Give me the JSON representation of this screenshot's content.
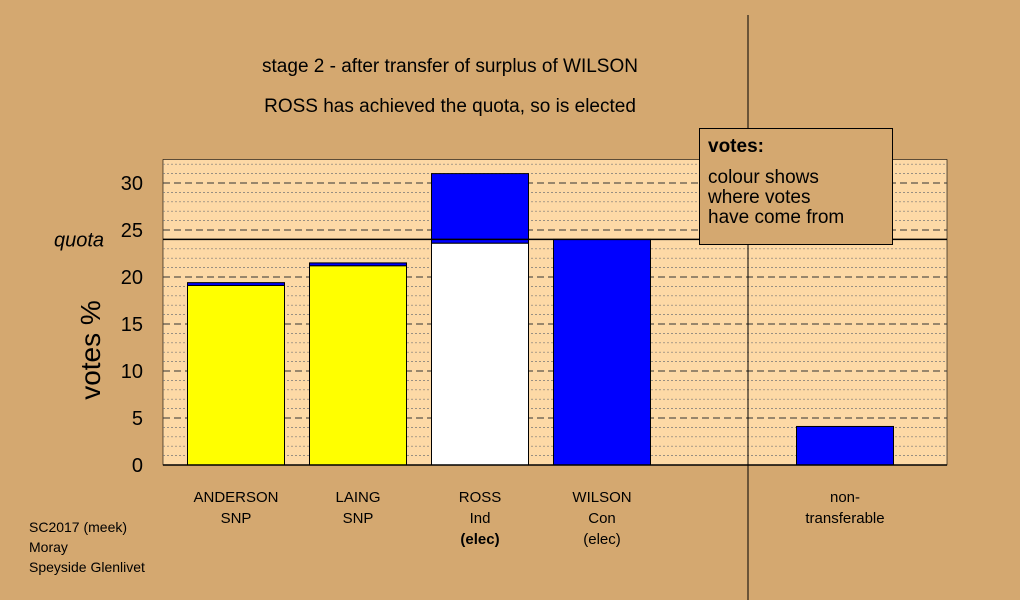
{
  "titles": {
    "line1": "stage 2 - after transfer of surplus of WILSON",
    "line2": "ROSS has achieved the quota, so is elected"
  },
  "legend": {
    "title": "votes:",
    "lines": [
      "colour shows",
      "where votes",
      "have come from"
    ]
  },
  "footer": [
    "SC2017 (meek)",
    "Moray",
    "Speyside Glenlivet"
  ],
  "colors": {
    "background": "#d4a870",
    "plot_area": "#fdd9a6",
    "snp": "#ffff00",
    "ind": "#ffffff",
    "con": "#0000ff"
  },
  "chart_data": {
    "type": "bar",
    "stacked": true,
    "ylabel": "votes %",
    "ylim": [
      0,
      32.5
    ],
    "yticks": [
      0,
      5,
      10,
      15,
      20,
      25,
      30
    ],
    "quota": 24,
    "quota_label": "quota",
    "grid": true,
    "categories": [
      {
        "lines": [
          "ANDERSON",
          "SNP"
        ],
        "bold_line": -1
      },
      {
        "lines": [
          "LAING",
          "SNP"
        ],
        "bold_line": -1
      },
      {
        "lines": [
          "ROSS",
          "Ind",
          "(elec)"
        ],
        "bold_line": 2
      },
      {
        "lines": [
          "WILSON",
          "Con",
          "(elec)"
        ],
        "bold_line": -1
      },
      {
        "lines": [
          "non-",
          "transferable"
        ],
        "bold_line": -1
      }
    ],
    "bars": [
      {
        "segments": [
          {
            "value": 19.1,
            "color": "#ffff00"
          },
          {
            "value": 0.3,
            "color": "#0000ff"
          }
        ]
      },
      {
        "segments": [
          {
            "value": 21.2,
            "color": "#ffff00"
          },
          {
            "value": 0.3,
            "color": "#0000ff"
          }
        ]
      },
      {
        "segments": [
          {
            "value": 23.6,
            "color": "#ffffff"
          },
          {
            "value": 7.4,
            "color": "#0000ff"
          }
        ]
      },
      {
        "segments": [
          {
            "value": 24.0,
            "color": "#0000ff"
          }
        ]
      },
      {
        "segments": [
          {
            "value": 4.1,
            "color": "#0000ff"
          }
        ]
      }
    ]
  }
}
